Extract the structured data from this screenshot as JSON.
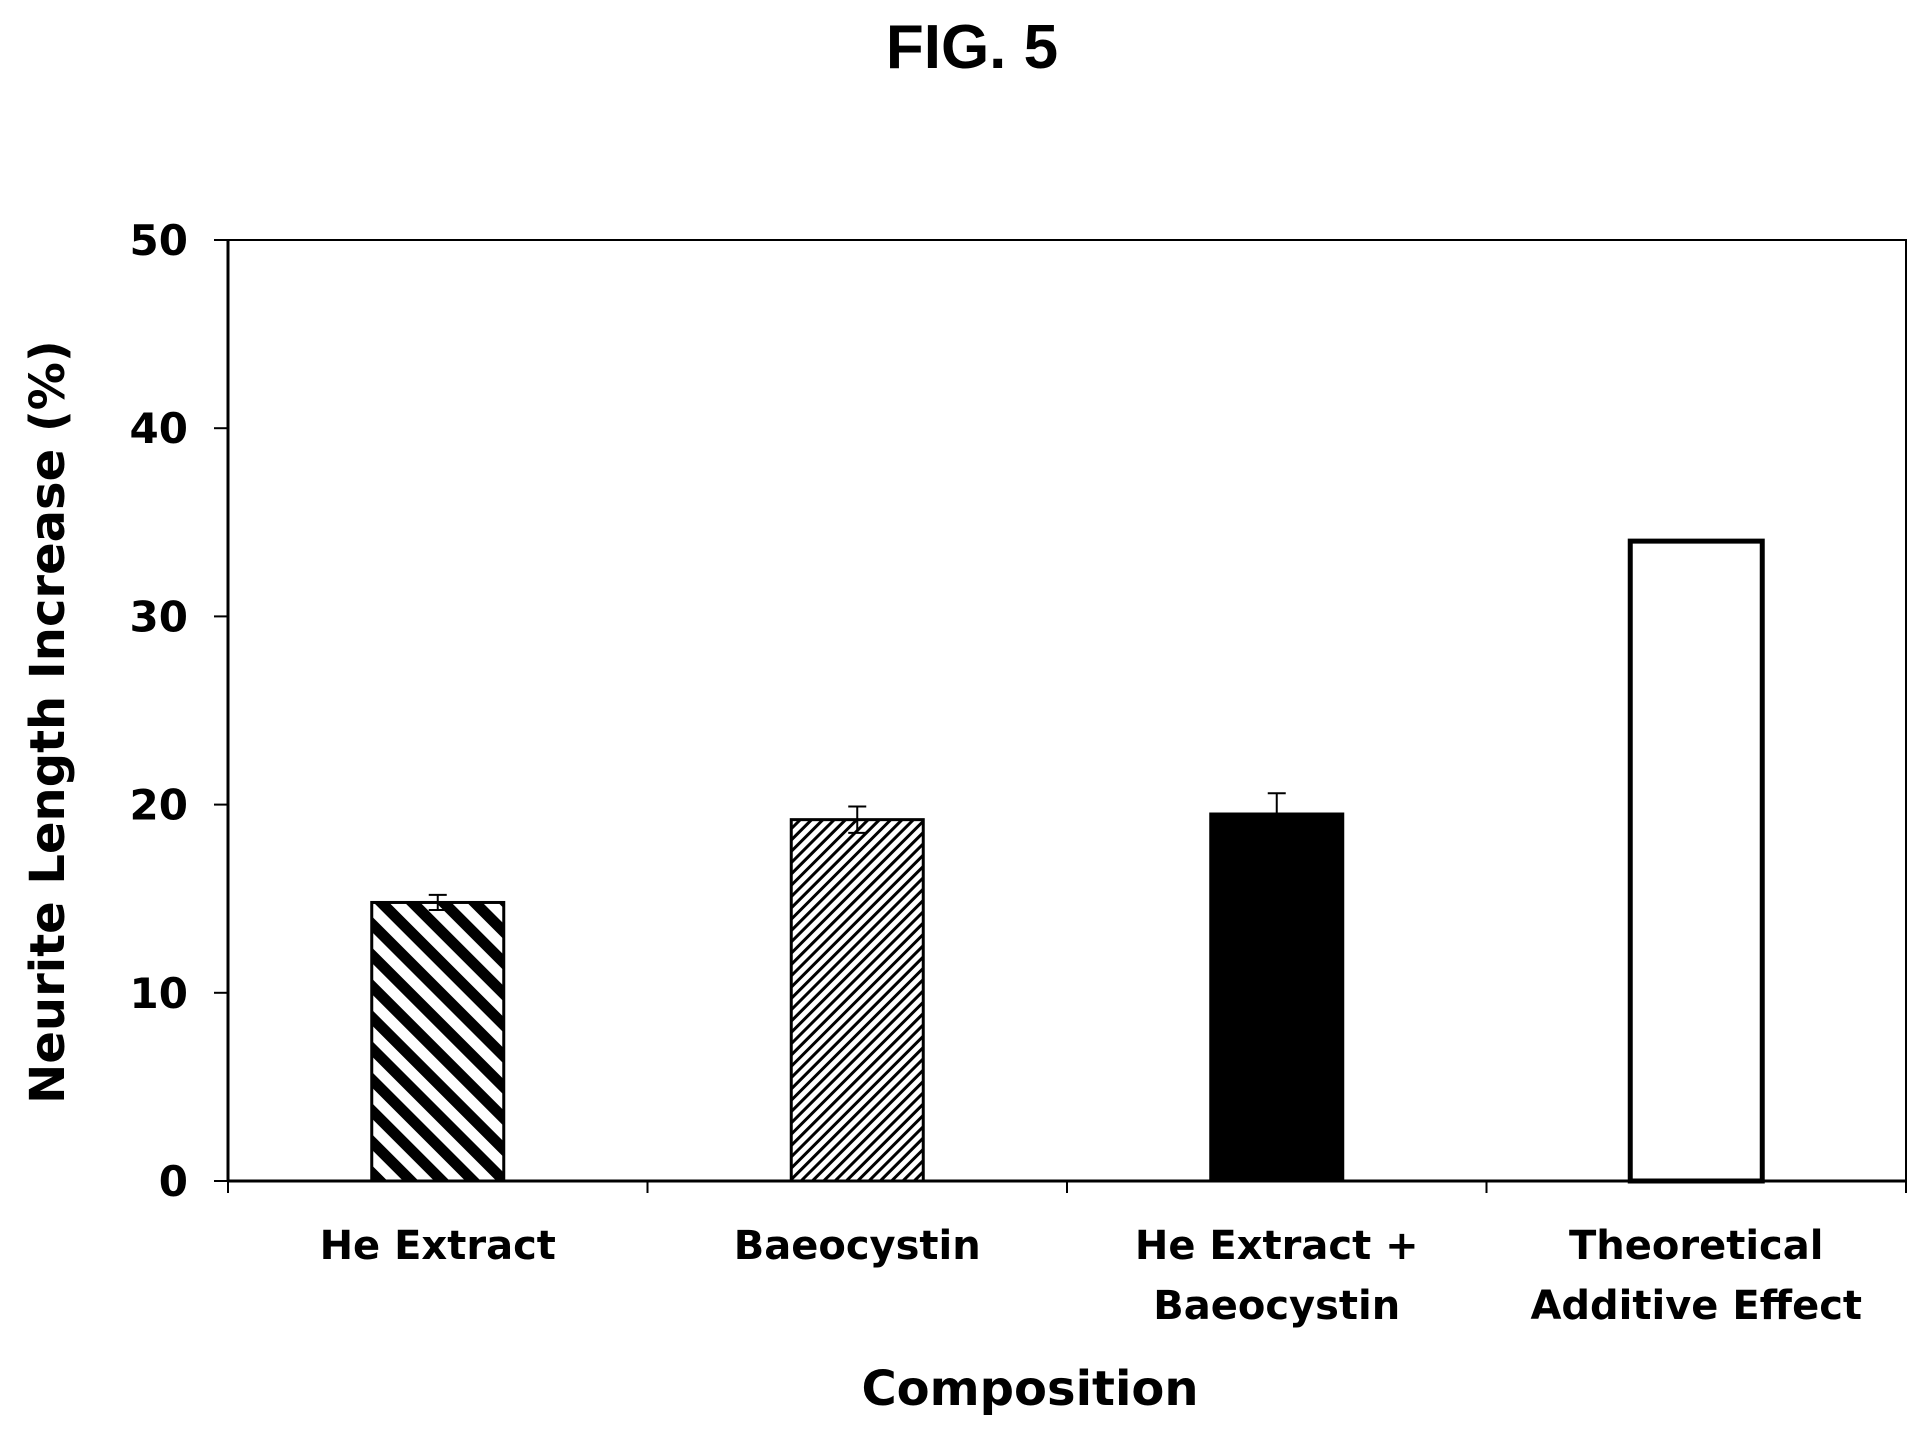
{
  "figure": {
    "title": "FIG. 5"
  },
  "chart_data": {
    "type": "bar",
    "title": "FIG. 5",
    "xlabel": "Composition",
    "ylabel": "Neurite Length Increase (%)",
    "ylim": [
      0,
      50
    ],
    "yticks": [
      0,
      10,
      20,
      30,
      40,
      50
    ],
    "grid": false,
    "categories": [
      [
        "He Extract"
      ],
      [
        "Baeocystin"
      ],
      [
        "He Extract +",
        "Baeocystin"
      ],
      [
        "Theoretical",
        "Additive Effect"
      ]
    ],
    "values": [
      14.8,
      19.2,
      19.5,
      34.0
    ],
    "errors": [
      0.4,
      0.7,
      1.1,
      null
    ],
    "fills": [
      "wide-hatch",
      "fine-hatch",
      "solid-black",
      "white"
    ]
  }
}
